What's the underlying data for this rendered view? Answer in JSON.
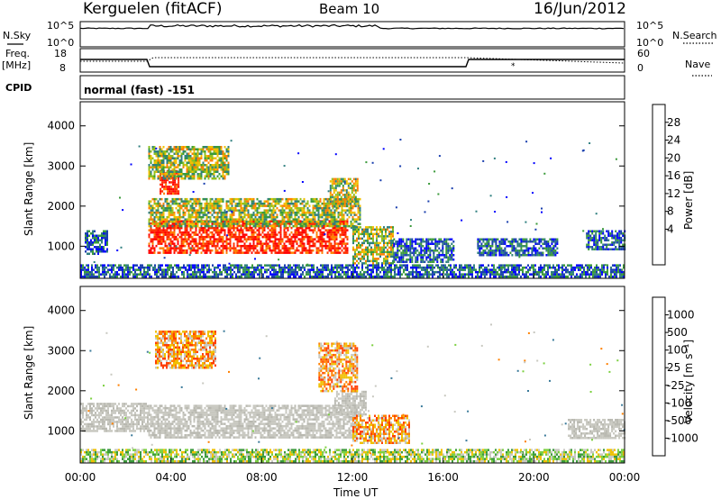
{
  "header": {
    "station": "Kerguelen (fitACF)",
    "beam": "Beam 10",
    "date": "16/Jun/2012"
  },
  "panels": {
    "nsky_label": "N.Sky",
    "nsearch_label": "N.Search",
    "freq_label": "Freq.",
    "freq_unit": "[MHz]",
    "nave_label": "Nave",
    "cpid_label": "CPID",
    "cpid_value": "normal (fast) -151",
    "sky_ticks": [
      "10^5",
      "10^0"
    ],
    "search_ticks": [
      "10^5",
      "10^0"
    ],
    "freq_ticks": [
      "18",
      "8"
    ],
    "nave_ticks": [
      "60",
      "0"
    ]
  },
  "chart_data": [
    {
      "type": "heatmap",
      "name": "power",
      "ylabel": "Slant Range [km]",
      "xlabel": "",
      "xlim": [
        0,
        24
      ],
      "ylim": [
        200,
        4600
      ],
      "yticks": [
        "1000",
        "2000",
        "3000",
        "4000"
      ],
      "colorbar_label": "Power [dB]",
      "colorbar_ticks": [
        "28",
        "24",
        "20",
        "16",
        "12",
        "8",
        "4"
      ],
      "colorbar_colors": [
        "#0000ff",
        "#1a3fae",
        "#2f7f7f",
        "#3a9a3a",
        "#90c020",
        "#f0c000",
        "#ff8000",
        "#ff3000",
        "#ff0000"
      ],
      "regions": [
        {
          "t0": 3.0,
          "t1": 11.8,
          "r0": 850,
          "r1": 1650,
          "level": "high"
        },
        {
          "t0": 3.5,
          "t1": 4.3,
          "r0": 2300,
          "r1": 2900,
          "level": "high"
        },
        {
          "t0": 3.0,
          "t1": 12.3,
          "r0": 1500,
          "r1": 2200,
          "level": "mid"
        },
        {
          "t0": 3.0,
          "t1": 6.5,
          "r0": 2700,
          "r1": 3500,
          "level": "mid"
        },
        {
          "t0": 11.0,
          "t1": 12.2,
          "r0": 2000,
          "r1": 2700,
          "level": "mid"
        },
        {
          "t0": 12.0,
          "t1": 13.8,
          "r0": 550,
          "r1": 1500,
          "level": "mid"
        },
        {
          "t0": 0.2,
          "t1": 1.2,
          "r0": 800,
          "r1": 1400,
          "level": "low"
        },
        {
          "t0": 13.8,
          "t1": 16.5,
          "r0": 600,
          "r1": 1200,
          "level": "low"
        },
        {
          "t0": 17.5,
          "t1": 21.0,
          "r0": 800,
          "r1": 1200,
          "level": "low"
        },
        {
          "t0": 22.3,
          "t1": 24.0,
          "r0": 900,
          "r1": 1400,
          "level": "low"
        },
        {
          "t0": 0.0,
          "t1": 24.0,
          "r0": 220,
          "r1": 550,
          "level": "low"
        }
      ]
    },
    {
      "type": "heatmap",
      "name": "velocity",
      "ylabel": "Slant Range [km]",
      "xlabel": "Time UT",
      "xlim": [
        0,
        24
      ],
      "ylim": [
        200,
        4600
      ],
      "xticks": [
        "00:00",
        "04:00",
        "08:00",
        "12:00",
        "16:00",
        "20:00",
        "00:00"
      ],
      "yticks": [
        "1000",
        "2000",
        "3000",
        "4000"
      ],
      "colorbar_label": "Velocity [m s⁻¹]",
      "colorbar_ticks": [
        "1000",
        "500",
        "100",
        "25",
        "-25",
        "-100",
        "-500",
        "-1000"
      ],
      "colorbar_colors": [
        "#2a52be",
        "#3a7a9a",
        "#3a9a3a",
        "#7cd040",
        "#c8c8c0",
        "#f0c000",
        "#ff8000",
        "#ff4000",
        "#ff0000"
      ],
      "regions": [
        {
          "t0": 3.0,
          "t1": 12.2,
          "r0": 850,
          "r1": 1650,
          "level": "ground"
        },
        {
          "t0": 11.2,
          "t1": 12.6,
          "r0": 1400,
          "r1": 2000,
          "level": "ground"
        },
        {
          "t0": 3.3,
          "t1": 6.0,
          "r0": 2600,
          "r1": 3500,
          "level": "neg"
        },
        {
          "t0": 10.5,
          "t1": 12.2,
          "r0": 2000,
          "r1": 3200,
          "level": "neg"
        },
        {
          "t0": 12.0,
          "t1": 14.5,
          "r0": 700,
          "r1": 1400,
          "level": "neg"
        },
        {
          "t0": 0.0,
          "t1": 3.0,
          "r0": 1000,
          "r1": 1700,
          "level": "ground"
        },
        {
          "t0": 21.5,
          "t1": 24.0,
          "r0": 800,
          "r1": 1300,
          "level": "ground"
        },
        {
          "t0": 0.0,
          "t1": 24.0,
          "r0": 220,
          "r1": 550,
          "level": "pos"
        }
      ]
    }
  ]
}
